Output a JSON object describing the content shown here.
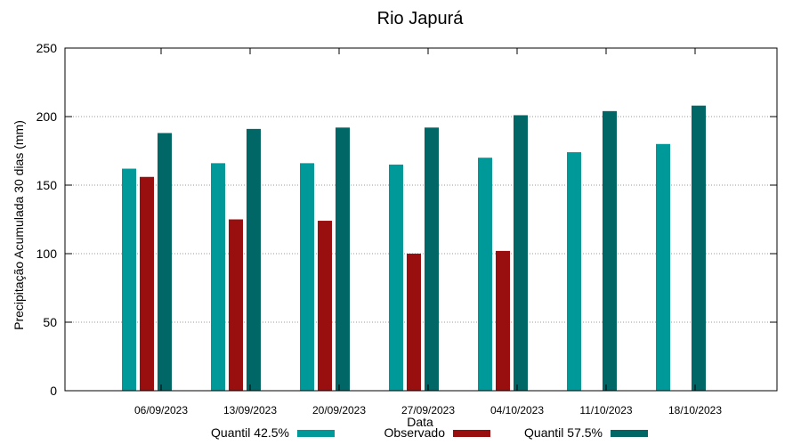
{
  "chart_data": {
    "type": "bar",
    "title": "Rio Japurá",
    "xlabel": "Data",
    "ylabel": "Precipitação Acumulada 30 dias (mm)",
    "ylim": [
      0,
      250
    ],
    "yticks": [
      0,
      50,
      100,
      150,
      200,
      250
    ],
    "grid": true,
    "legend_position": "bottom",
    "categories": [
      "06/09/2023",
      "13/09/2023",
      "20/09/2023",
      "27/09/2023",
      "04/10/2023",
      "11/10/2023",
      "18/10/2023"
    ],
    "series": [
      {
        "name": "Quantil 42.5%",
        "color": "#009999",
        "values": [
          162,
          166,
          166,
          165,
          170,
          174,
          180
        ]
      },
      {
        "name": "Observado",
        "color": "#990f0f",
        "values": [
          156,
          125,
          124,
          100,
          102,
          null,
          null
        ]
      },
      {
        "name": "Quantil 57.5%",
        "color": "#006666",
        "values": [
          188,
          191,
          192,
          192,
          201,
          204,
          208
        ]
      }
    ]
  }
}
